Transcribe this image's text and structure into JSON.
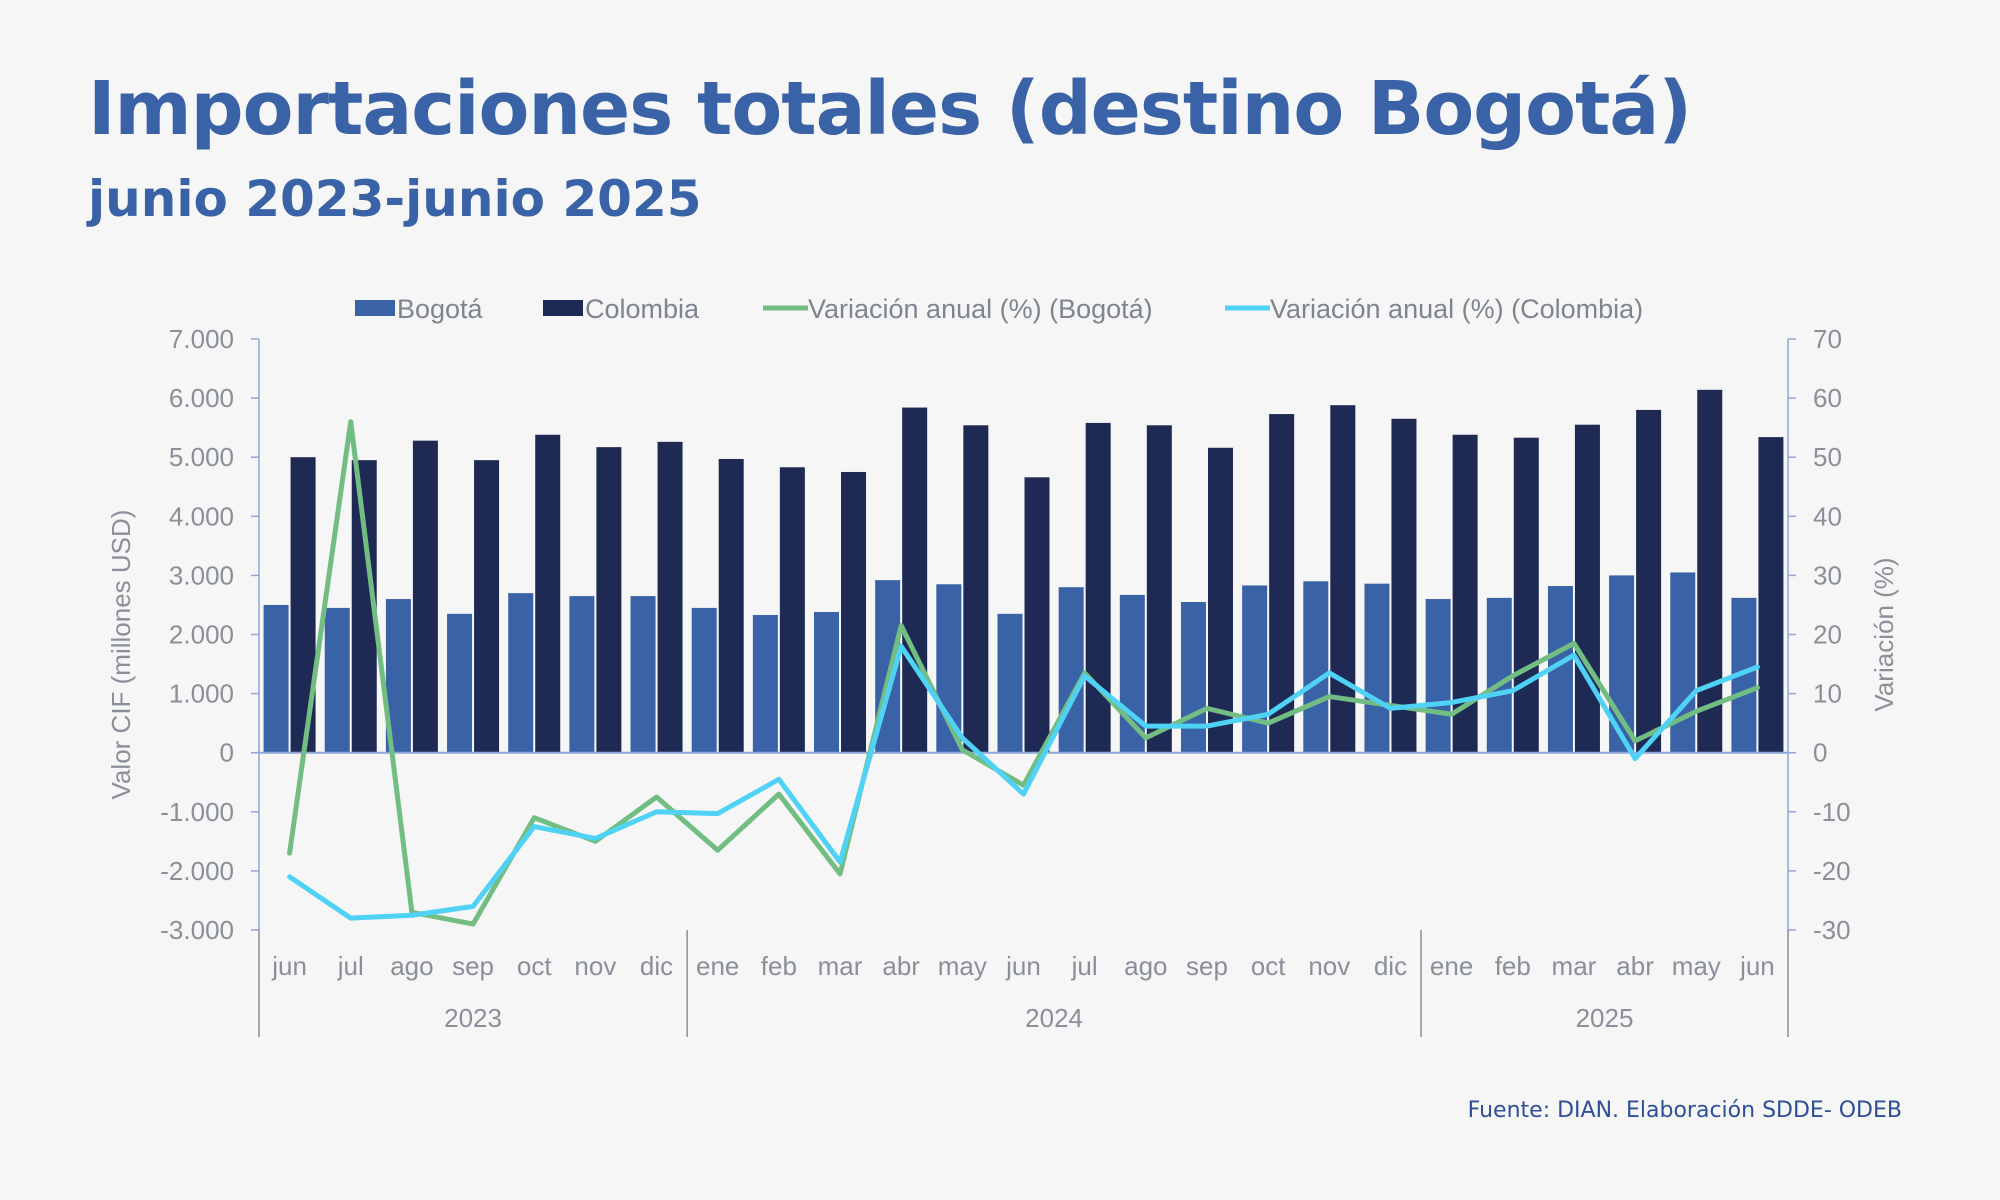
{
  "header": {
    "title": "Importaciones totales (destino Bogotá)",
    "subtitle": "junio 2023-junio 2025"
  },
  "source": "Fuente: DIAN. Elaboración SDDE- ODEB",
  "colors": {
    "bogota_bar": "#3a62a7",
    "colombia_bar": "#1f2a54",
    "var_bogota": "#72bd82",
    "var_colombia": "#4fd2f5",
    "axis": "#8fa6d8",
    "text": "#8a8f99"
  },
  "chart_data": {
    "type": "bar",
    "categories": [
      "jun",
      "jul",
      "ago",
      "sep",
      "oct",
      "nov",
      "dic",
      "ene",
      "feb",
      "mar",
      "abr",
      "may",
      "jun",
      "jul",
      "ago",
      "sep",
      "oct",
      "nov",
      "dic",
      "ene",
      "feb",
      "mar",
      "abr",
      "may",
      "jun"
    ],
    "year_groups": [
      {
        "label": "2023",
        "start": 0,
        "end": 6
      },
      {
        "label": "2024",
        "start": 7,
        "end": 18
      },
      {
        "label": "2025",
        "start": 19,
        "end": 24
      }
    ],
    "ylabel": "Valor CIF (millones USD)",
    "y2label": "Variación (%)",
    "ylim": [
      -3000,
      7000
    ],
    "y2lim": [
      -30,
      70
    ],
    "yticks": [
      "7.000",
      "6.000",
      "5.000",
      "4.000",
      "3.000",
      "2.000",
      "1.000",
      "0",
      "-1.000",
      "-2.000",
      "-3.000"
    ],
    "y2ticks": [
      "70",
      "60",
      "50",
      "40",
      "30",
      "20",
      "10",
      "0",
      "-10",
      "-20",
      "-30"
    ],
    "grid": false,
    "legend_position": "top",
    "series": [
      {
        "name": "Bogotá",
        "kind": "bar",
        "axis": "left",
        "values": [
          2500,
          2450,
          2600,
          2350,
          2700,
          2650,
          2650,
          2450,
          2330,
          2380,
          2920,
          2850,
          2350,
          2800,
          2670,
          2550,
          2830,
          2900,
          2860,
          2600,
          2620,
          2820,
          3000,
          3050,
          2620
        ]
      },
      {
        "name": "Colombia",
        "kind": "bar",
        "axis": "left",
        "values": [
          5000,
          4950,
          5280,
          4950,
          5380,
          5170,
          5260,
          4970,
          4830,
          4750,
          5840,
          5540,
          4660,
          5580,
          5540,
          5160,
          5730,
          5880,
          5650,
          5380,
          5330,
          5550,
          5800,
          6140,
          5340
        ]
      },
      {
        "name": "Variación anual (%) (Bogotá)",
        "kind": "line",
        "axis": "right",
        "values": [
          -17,
          56,
          -27,
          -29,
          -11,
          -15,
          -7.5,
          -16.5,
          -7,
          -20.5,
          21.5,
          0.5,
          -5.5,
          13.5,
          2.5,
          7.5,
          5,
          9.5,
          8,
          6.5,
          13,
          18.5,
          2,
          7,
          11
        ]
      },
      {
        "name": "Variación anual (%) (Colombia)",
        "kind": "line",
        "axis": "right",
        "values": [
          -21,
          -28,
          -27.5,
          -26,
          -12.5,
          -14.5,
          -10,
          -10.3,
          -4.5,
          -18.5,
          18,
          2.5,
          -7,
          13,
          4.5,
          4.5,
          6.5,
          13.5,
          7.5,
          8.5,
          10.5,
          16.5,
          -1,
          10.5,
          14.5
        ]
      }
    ]
  }
}
